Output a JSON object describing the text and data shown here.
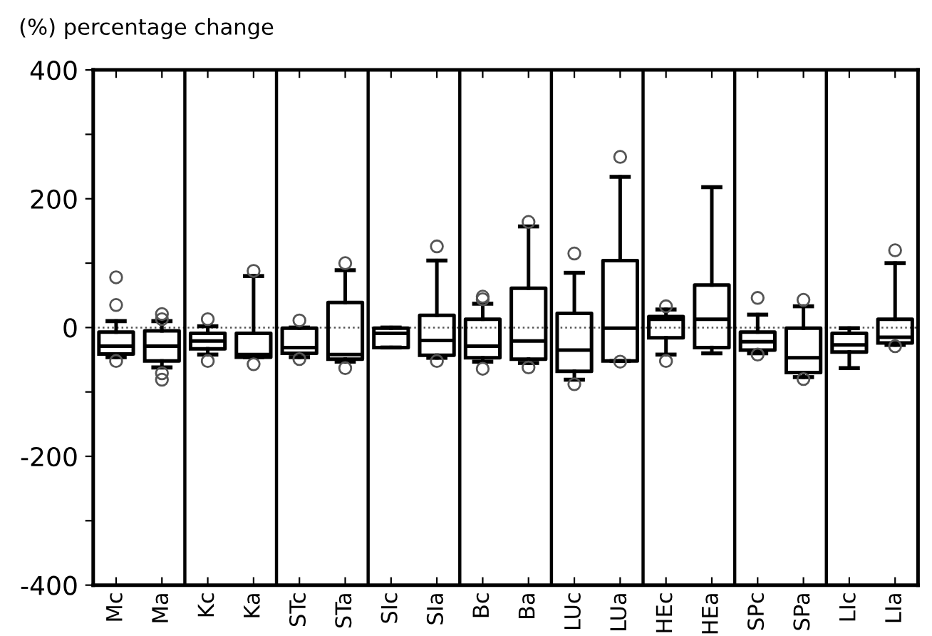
{
  "chart_data": {
    "type": "box",
    "ylabel": "(%) percentage change",
    "categories": [
      "Mc",
      "Ma",
      "Kc",
      "Ka",
      "STc",
      "STa",
      "SIc",
      "SIa",
      "Bc",
      "Ba",
      "LUc",
      "LUa",
      "HEc",
      "HEa",
      "SPc",
      "SPa",
      "LIc",
      "LIa"
    ],
    "boxes": [
      {
        "low": -46,
        "q1": -41,
        "median": -29,
        "q3": -7,
        "high": 10,
        "outliers": [
          78,
          35,
          -52
        ]
      },
      {
        "low": -62,
        "q1": -52,
        "median": -29,
        "q3": -5,
        "high": 10,
        "outliers": [
          21,
          13,
          -71,
          -81
        ]
      },
      {
        "low": -42,
        "q1": -33,
        "median": -21,
        "q3": -9,
        "high": 2,
        "outliers": [
          13,
          -52
        ]
      },
      {
        "low": -46,
        "q1": -46,
        "median": -42,
        "q3": -9,
        "high": 80,
        "outliers": [
          88,
          -57
        ]
      },
      {
        "low": -46,
        "q1": -40,
        "median": -31,
        "q3": -1,
        "high": 0,
        "outliers": [
          11,
          -49
        ]
      },
      {
        "low": -53,
        "q1": -49,
        "median": -42,
        "q3": 39,
        "high": 89,
        "outliers": [
          100,
          -63
        ]
      },
      {
        "low": -31,
        "q1": -31,
        "median": -9,
        "q3": -1,
        "high": 0
      },
      {
        "low": -47,
        "q1": -43,
        "median": -20,
        "q3": 19,
        "high": 104,
        "outliers": [
          126,
          -52
        ]
      },
      {
        "low": -53,
        "q1": -47,
        "median": -29,
        "q3": 13,
        "high": 37,
        "outliers": [
          48,
          44,
          -64
        ]
      },
      {
        "low": -55,
        "q1": -49,
        "median": -21,
        "q3": 61,
        "high": 157,
        "outliers": [
          164,
          -62
        ]
      },
      {
        "low": -81,
        "q1": -68,
        "median": -35,
        "q3": 22,
        "high": 85,
        "outliers": [
          115,
          -88
        ]
      },
      {
        "low": -52,
        "q1": -52,
        "median": -1,
        "q3": 104,
        "high": 234,
        "outliers": [
          265,
          -53
        ]
      },
      {
        "low": -42,
        "q1": -16,
        "median": 13,
        "q3": 17,
        "high": 28,
        "outliers": [
          33,
          -52
        ]
      },
      {
        "low": -40,
        "q1": -31,
        "median": 13,
        "q3": 66,
        "high": 218
      },
      {
        "low": -40,
        "q1": -35,
        "median": -22,
        "q3": -7,
        "high": 20,
        "outliers": [
          46,
          -42
        ]
      },
      {
        "low": -77,
        "q1": -70,
        "median": -47,
        "q3": -1,
        "high": 33,
        "outliers": [
          43,
          -80
        ]
      },
      {
        "low": -63,
        "q1": -38,
        "median": -27,
        "q3": -9,
        "high": -1
      },
      {
        "low": -27,
        "q1": -24,
        "median": -15,
        "q3": 13,
        "high": 100,
        "outliers": [
          120,
          -29
        ]
      }
    ],
    "ylim": [
      -400,
      400
    ],
    "yticks": [
      -400,
      {
        "value": -300,
        "label": null
      },
      -200,
      {
        "value": -100,
        "label": null
      },
      0,
      {
        "value": 100,
        "label": null
      },
      200,
      {
        "value": 300,
        "label": null
      },
      400
    ],
    "ref_lines": [
      {
        "axis": "y",
        "value": 0,
        "line_style": "dotted",
        "color": "#555555"
      }
    ],
    "grid": false,
    "legend": false
  }
}
